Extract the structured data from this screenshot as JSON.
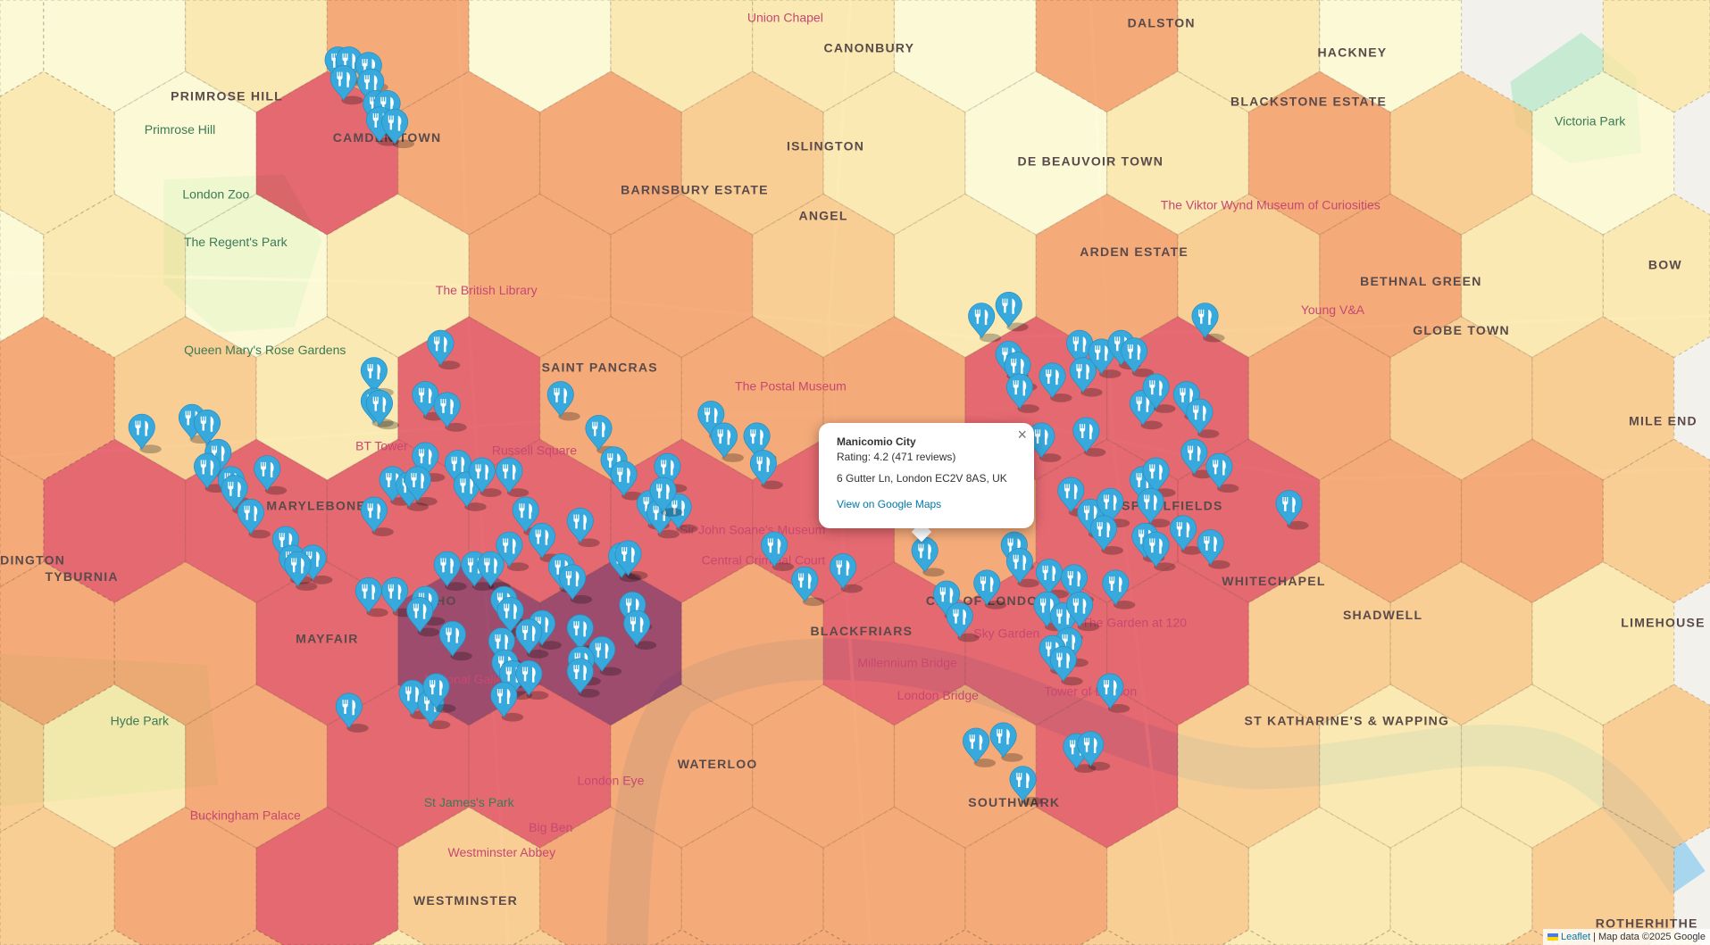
{
  "map": {
    "hex_colors": {
      "0": "#fdfbd0",
      "1": "#fbe7a2",
      "2": "#f8c47c",
      "3": "#f39658",
      "4": "#e0434e",
      "5": "#8e2f58"
    },
    "hex_levels": [
      [
        0,
        0,
        1,
        3,
        0,
        1,
        1,
        0,
        3,
        1,
        0,
        -1,
        1
      ],
      [
        1,
        0,
        4,
        3,
        3,
        2,
        1,
        0,
        1,
        3,
        2,
        0
      ],
      [
        0,
        1,
        0,
        1,
        3,
        3,
        2,
        1,
        3,
        2,
        3,
        1,
        1
      ],
      [
        3,
        2,
        1,
        4,
        3,
        3,
        3,
        4,
        4,
        3,
        2,
        2
      ],
      [
        3,
        4,
        4,
        4,
        4,
        4,
        4,
        3,
        4,
        4,
        3,
        3,
        2
      ],
      [
        3,
        3,
        4,
        5,
        5,
        3,
        4,
        4,
        4,
        2,
        2,
        1
      ],
      [
        2,
        1,
        3,
        4,
        4,
        3,
        3,
        3,
        4,
        2,
        1,
        1,
        2
      ],
      [
        2,
        3,
        4,
        2,
        3,
        3,
        3,
        3,
        2,
        1,
        1,
        2
      ],
      [
        1,
        2,
        3,
        1,
        2,
        3,
        3,
        3,
        2,
        1,
        1,
        2,
        1
      ]
    ],
    "marker_icon": "restaurant-fork-knife-icon",
    "marker_color": "#38a9dc",
    "labels": [
      {
        "text": "DALSTON",
        "kind": "area"
      },
      {
        "text": "HACKNEY",
        "kind": "area"
      },
      {
        "text": "Union Chapel",
        "kind": "poi"
      },
      {
        "text": "CANONBURY",
        "kind": "area"
      },
      {
        "text": "PRIMROSE HILL",
        "kind": "area"
      },
      {
        "text": "Primrose Hill",
        "kind": "park"
      },
      {
        "text": "CAMDEN TOWN",
        "kind": "area"
      },
      {
        "text": "ISLINGTON",
        "kind": "area"
      },
      {
        "text": "BLACKSTONE ESTATE",
        "kind": "area"
      },
      {
        "text": "BARNSBURY ESTATE",
        "kind": "area"
      },
      {
        "text": "London Zoo",
        "kind": "park"
      },
      {
        "text": "The Regent's Park",
        "kind": "park"
      },
      {
        "text": "ANGEL",
        "kind": "area"
      },
      {
        "text": "DE BEAUVOIR TOWN",
        "kind": "area"
      },
      {
        "text": "The Viktor Wynd Museum of Curiosities",
        "kind": "poi"
      },
      {
        "text": "ARDEN ESTATE",
        "kind": "area"
      },
      {
        "text": "The British Library",
        "kind": "poi"
      },
      {
        "text": "BETHNAL GREEN",
        "kind": "area"
      },
      {
        "text": "Young V&A",
        "kind": "poi"
      },
      {
        "text": "GLOBE TOWN",
        "kind": "area"
      },
      {
        "text": "Queen Mary's Rose Gardens",
        "kind": "park"
      },
      {
        "text": "SAINT PANCRAS",
        "kind": "area"
      },
      {
        "text": "The Postal Museum",
        "kind": "poi"
      },
      {
        "text": "BT Tower",
        "kind": "poi"
      },
      {
        "text": "Russell Square",
        "kind": "poi"
      },
      {
        "text": "MARYLEBONE",
        "kind": "area"
      },
      {
        "text": "Sir John Soane's Museum",
        "kind": "poi"
      },
      {
        "text": "SPITALFIELDS",
        "kind": "area"
      },
      {
        "text": "TYBURNIA",
        "kind": "area"
      },
      {
        "text": "WHITECHAPEL",
        "kind": "area"
      },
      {
        "text": "SOHO",
        "kind": "area"
      },
      {
        "text": "CITY OF LONDON",
        "kind": "area"
      },
      {
        "text": "The Garden at 120",
        "kind": "poi"
      },
      {
        "text": "Sky Garden",
        "kind": "poi"
      },
      {
        "text": "MAYFAIR",
        "kind": "area"
      },
      {
        "text": "SHADWELL",
        "kind": "area"
      },
      {
        "text": "LIMEHOUSE",
        "kind": "area"
      },
      {
        "text": "BLACKFRIARS",
        "kind": "area"
      },
      {
        "text": "Millennium Bridge",
        "kind": "poi"
      },
      {
        "text": "Hyde Park",
        "kind": "park"
      },
      {
        "text": "London Bridge",
        "kind": "poi"
      },
      {
        "text": "Tower of London",
        "kind": "poi"
      },
      {
        "text": "ST KATHARINE'S & WAPPING",
        "kind": "area"
      },
      {
        "text": "WATERLOO",
        "kind": "area"
      },
      {
        "text": "London Eye",
        "kind": "poi"
      },
      {
        "text": "St James's Park",
        "kind": "park"
      },
      {
        "text": "Buckingham Palace",
        "kind": "poi"
      },
      {
        "text": "Big Ben",
        "kind": "poi"
      },
      {
        "text": "Westminster Abbey",
        "kind": "poi"
      },
      {
        "text": "WESTMINSTER",
        "kind": "area"
      },
      {
        "text": "ROTHERHITHE",
        "kind": "area"
      },
      {
        "text": "MILE END",
        "kind": "area"
      },
      {
        "text": "BOW",
        "kind": "area"
      },
      {
        "text": "Victoria Park",
        "kind": "park"
      },
      {
        "text": "SOUTHWARK",
        "kind": "area"
      },
      {
        "text": "Central Criminal Court",
        "kind": "poi"
      },
      {
        "text": "National Gallery",
        "kind": "poi"
      },
      {
        "text": "DINGTON",
        "kind": "area"
      }
    ]
  },
  "popup": {
    "title": "Manicomio City",
    "rating": "Rating: 4.2 (471 reviews)",
    "address": "6 Gutter Ln, London EC2V 8AS, UK",
    "link": "View on Google Maps",
    "close": "×"
  },
  "attribution": {
    "leaflet": "Leaflet",
    "text": "| Map data ©2025 Google"
  }
}
